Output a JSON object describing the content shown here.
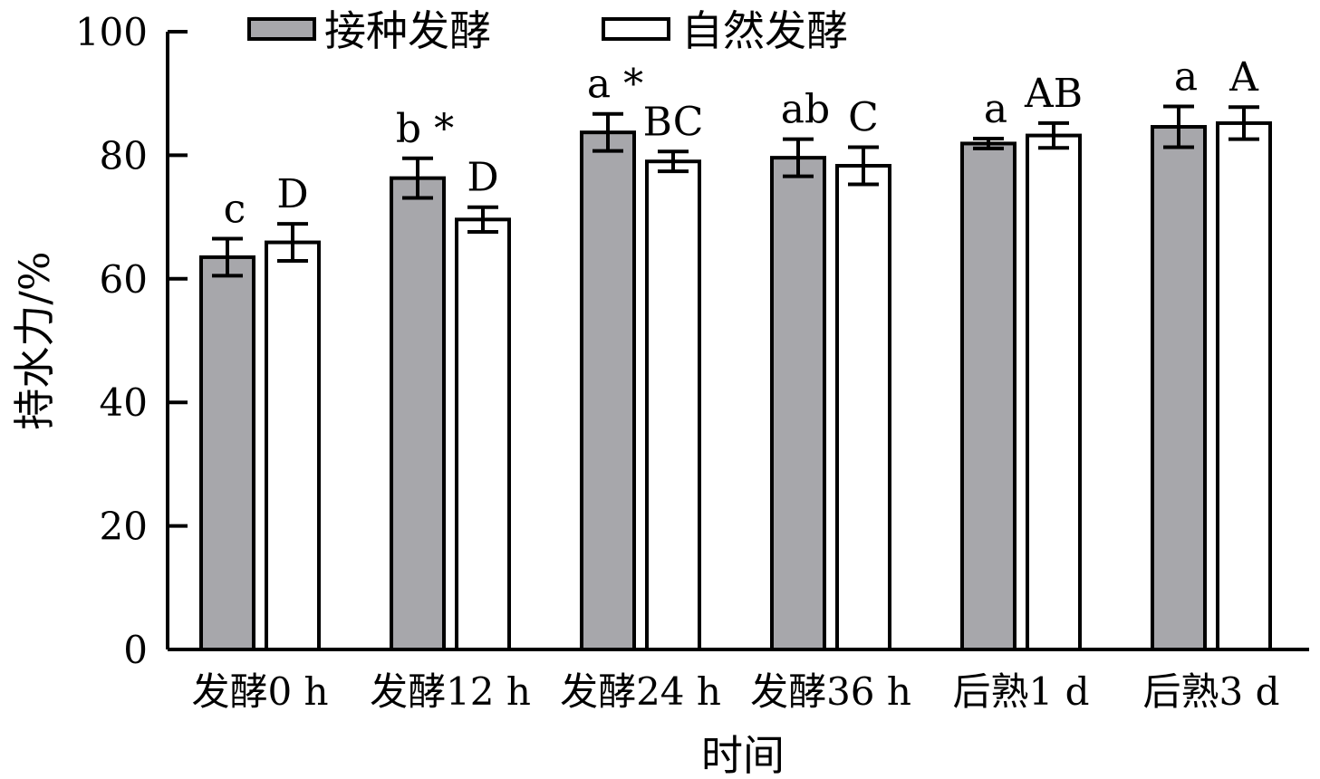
{
  "chart_data": {
    "type": "bar",
    "title": "",
    "xlabel": "时间",
    "ylabel": "持水力/%",
    "ylim": [
      0,
      100
    ],
    "yticks": [
      0,
      20,
      40,
      60,
      80,
      100
    ],
    "grid": false,
    "legend_position": "top",
    "categories": [
      "发酵0 h",
      "发酵12 h",
      "发酵24 h",
      "发酵36 h",
      "后熟1 d",
      "后熟3 d"
    ],
    "series": [
      {
        "name": "接种发酵",
        "color": "#a7a7ab",
        "values": [
          63.5,
          76.3,
          83.7,
          79.6,
          81.9,
          84.6
        ],
        "errors": [
          3.0,
          3.2,
          3.0,
          3.0,
          0.8,
          3.3
        ],
        "labels": [
          "c",
          "b *",
          "a *",
          "ab",
          "a",
          "a"
        ]
      },
      {
        "name": "自然发酵",
        "color": "#ffffff",
        "values": [
          65.9,
          69.6,
          79.0,
          78.3,
          83.2,
          85.2
        ],
        "errors": [
          3.0,
          2.0,
          1.6,
          3.0,
          2.0,
          2.6
        ],
        "labels": [
          "D",
          "D",
          "BC",
          "C",
          "AB",
          "A"
        ]
      }
    ]
  }
}
